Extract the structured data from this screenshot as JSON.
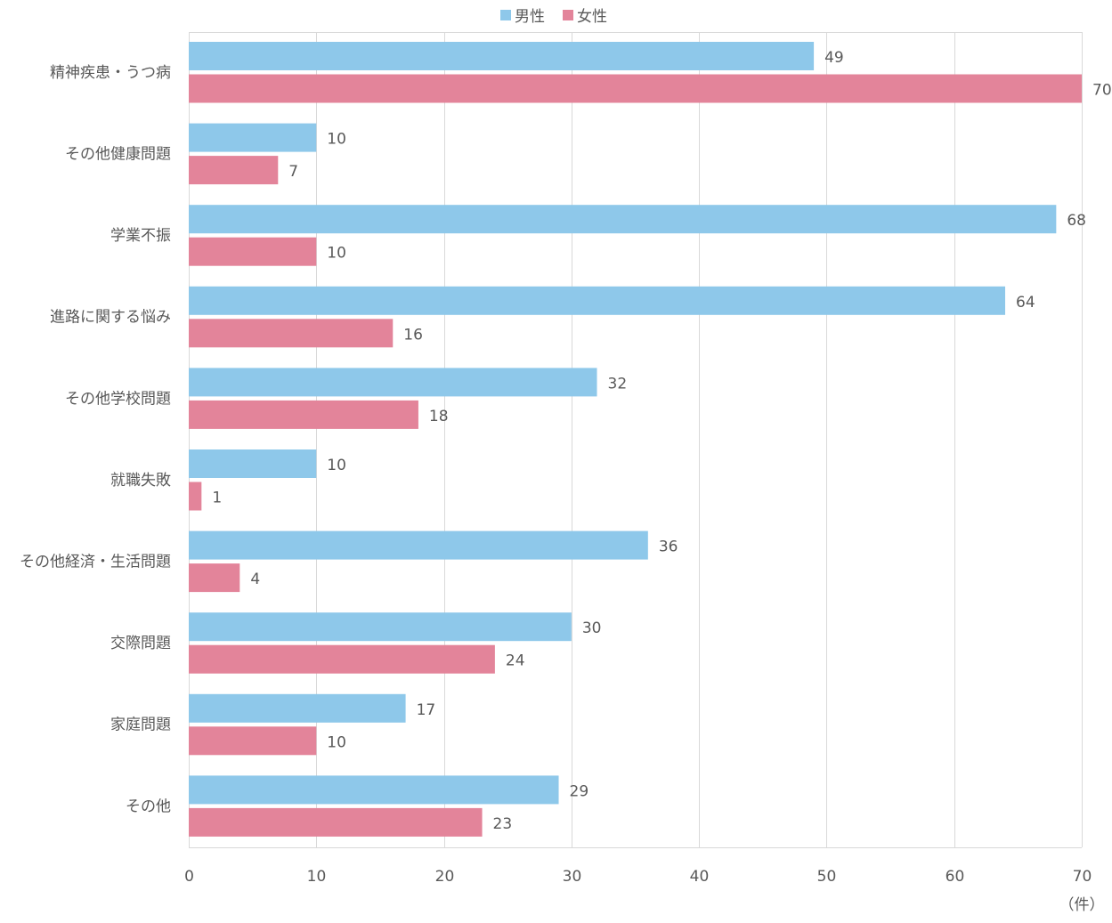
{
  "chart_data": {
    "type": "bar",
    "orientation": "horizontal",
    "title": "",
    "xlabel": "",
    "ylabel": "",
    "unit_label": "（件）",
    "xlim": [
      0,
      70
    ],
    "xticks": [
      0,
      10,
      20,
      30,
      40,
      50,
      60,
      70
    ],
    "grid": true,
    "legend_position": "top",
    "categories": [
      "精神疾患・うつ病",
      "その他健康問題",
      "学業不振",
      "進路に関する悩み",
      "その他学校問題",
      "就職失敗",
      "その他経済・生活問題",
      "交際問題",
      "家庭問題",
      "その他"
    ],
    "series": [
      {
        "name": "男性",
        "color": "#8ec8ea",
        "values": [
          49,
          10,
          68,
          64,
          32,
          10,
          36,
          30,
          17,
          29
        ]
      },
      {
        "name": "女性",
        "color": "#e3849a",
        "values": [
          70,
          7,
          10,
          16,
          18,
          1,
          4,
          24,
          10,
          23
        ]
      }
    ]
  }
}
